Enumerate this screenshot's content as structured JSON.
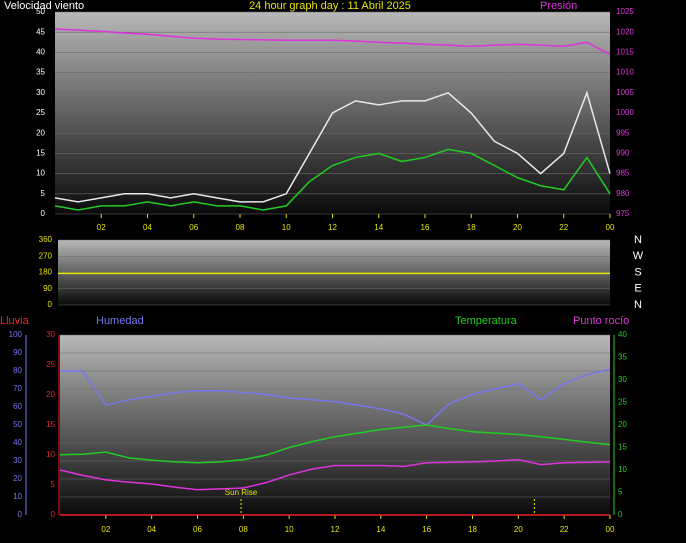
{
  "chart_data": [
    {
      "type": "line",
      "title": "24 hour graph day : 11 Abril 2025",
      "x": [
        0,
        1,
        2,
        3,
        4,
        5,
        6,
        7,
        8,
        9,
        10,
        11,
        12,
        13,
        14,
        15,
        16,
        17,
        18,
        19,
        20,
        21,
        22,
        23,
        24
      ],
      "xlim": [
        0,
        24
      ],
      "xticks": [
        {
          "value": 2,
          "label": "02"
        },
        {
          "value": 4,
          "label": "04"
        },
        {
          "value": 6,
          "label": "06"
        },
        {
          "value": 8,
          "label": "08"
        },
        10,
        12,
        14,
        16,
        18,
        20,
        22,
        {
          "value": 24,
          "label": "00"
        }
      ],
      "ylim": [
        0,
        50
      ],
      "yticks": [
        0,
        5,
        10,
        15,
        20,
        25,
        30,
        35,
        40,
        45,
        50
      ],
      "y2lim": [
        975,
        1025
      ],
      "y2ticks": [
        975,
        980,
        985,
        990,
        995,
        1000,
        1005,
        1010,
        1015,
        1020,
        1025
      ],
      "grid": true,
      "series": [
        {
          "color": "#e8e8e8",
          "values": [
            4,
            3,
            4,
            5,
            5,
            4,
            5,
            4,
            3,
            3,
            5,
            15,
            25,
            28,
            27,
            28,
            28,
            30,
            25,
            18,
            15,
            10,
            15,
            30,
            10
          ]
        },
        {
          "name": "Velocidad viento",
          "color": "#22cc22",
          "values": [
            2,
            1,
            2,
            2,
            3,
            2,
            3,
            2,
            2,
            1,
            2,
            8,
            12,
            14,
            15,
            13,
            14,
            16,
            15,
            12,
            9,
            7,
            6,
            14,
            5
          ]
        },
        {
          "name": "Presión",
          "color": "#dd33dd",
          "axis": "y2",
          "values": [
            1020.8,
            1020.5,
            1020.2,
            1019.8,
            1019.5,
            1019,
            1018.5,
            1018.3,
            1018.2,
            1018.1,
            1018,
            1018,
            1018,
            1017.8,
            1017.5,
            1017.3,
            1017,
            1016.8,
            1016.5,
            1016.8,
            1017,
            1016.8,
            1016.5,
            1017.5,
            1014.5
          ]
        }
      ]
    },
    {
      "type": "line",
      "x": [
        0,
        24
      ],
      "xlim": [
        0,
        24
      ],
      "ylim": [
        0,
        360
      ],
      "yticks": [
        0,
        90,
        180,
        270,
        360
      ],
      "grid": true,
      "compass": [
        "N",
        "W",
        "S",
        "E",
        "N"
      ],
      "series": [
        {
          "color": "#e6e600",
          "values": [
            175,
            175
          ]
        }
      ]
    },
    {
      "type": "line",
      "x": [
        0,
        1,
        2,
        3,
        4,
        5,
        6,
        7,
        8,
        9,
        10,
        11,
        12,
        13,
        14,
        15,
        16,
        17,
        18,
        19,
        20,
        21,
        22,
        23,
        24
      ],
      "xlim": [
        0,
        24
      ],
      "xticks": [
        {
          "value": 2,
          "label": "02"
        },
        {
          "value": 4,
          "label": "04"
        },
        {
          "value": 6,
          "label": "06"
        },
        {
          "value": 8,
          "label": "08"
        },
        10,
        12,
        14,
        16,
        18,
        20,
        22,
        {
          "value": 24,
          "label": "00"
        }
      ],
      "ylim": [
        0,
        100
      ],
      "yticks": [
        0,
        10,
        20,
        30,
        40,
        50,
        60,
        70,
        80,
        90,
        100
      ],
      "y2lim": [
        0,
        40
      ],
      "y2ticks": [
        0,
        5,
        10,
        15,
        20,
        25,
        30,
        35,
        40
      ],
      "y3lim": [
        0,
        30
      ],
      "y3ticks": [
        0,
        5,
        10,
        15,
        20,
        25,
        30
      ],
      "grid": true,
      "annotation": "Sun Rise",
      "sun_lines": [
        7.9,
        20.7
      ],
      "series": [
        {
          "name": "Lluvia",
          "color": "#ee2222",
          "axis": "y3",
          "values": [
            0,
            0,
            0,
            0,
            0,
            0,
            0,
            0,
            0,
            0,
            0,
            0,
            0,
            0,
            0,
            0,
            0,
            0,
            0,
            0,
            0,
            0,
            0,
            0,
            0
          ]
        },
        {
          "name": "Humedad",
          "color": "#7777ee",
          "values": [
            80,
            80,
            61,
            64,
            66,
            68,
            69,
            69,
            68,
            67,
            65,
            64,
            63,
            61,
            59,
            56,
            50,
            62,
            67,
            70,
            73,
            64,
            73,
            78,
            81
          ]
        },
        {
          "name": "Temperatura",
          "color": "#22cc22",
          "axis": "y2",
          "values": [
            13.4,
            13.5,
            14,
            12.7,
            12.2,
            11.8,
            11.6,
            11.8,
            12.3,
            13.3,
            15,
            16.3,
            17.4,
            18.2,
            19,
            19.5,
            20,
            19.2,
            18.5,
            18.2,
            17.9,
            17.4,
            16.8,
            16.2,
            15.6
          ]
        },
        {
          "name": "Punto rocío",
          "color": "#dd33dd",
          "axis": "y2",
          "values": [
            10,
            8.8,
            7.8,
            7.3,
            6.9,
            6.2,
            5.6,
            5.8,
            6,
            7.2,
            8.9,
            10.2,
            11,
            11,
            11,
            10.8,
            11.6,
            11.7,
            11.8,
            12,
            12.3,
            11.2,
            11.6,
            11.7,
            11.8
          ]
        }
      ]
    }
  ]
}
